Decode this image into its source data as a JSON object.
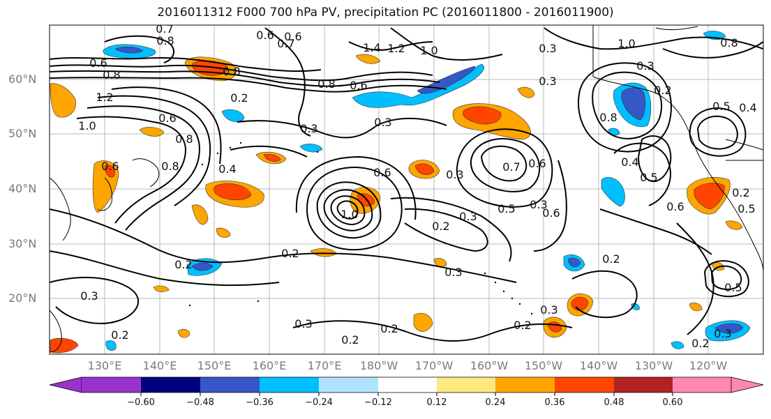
{
  "title": "2016011312 F000 700 hPa PV, precipitation PC (2016011800 - 2016011900)",
  "lat_labels": [
    "60°N",
    "50°N",
    "40°N",
    "30°N",
    "20°N"
  ],
  "lon_labels": [
    "130°E",
    "140°E",
    "150°E",
    "160°E",
    "170°E",
    "180°W",
    "170°W",
    "160°W",
    "150°W",
    "140°W",
    "130°W",
    "120°W"
  ],
  "contour_labels": [
    "0.7",
    "0.8",
    "0.6",
    "0.7",
    "1.4",
    "1.2",
    "1.0",
    "1.0",
    "0.8",
    "0.6",
    "0.8",
    "0.8",
    "0.3",
    "0.3",
    "0.6",
    "0.8",
    "0.5",
    "0.4",
    "1.2",
    "1.0",
    "0.8",
    "0.6",
    "0.2",
    "0.3",
    "0.3",
    "0.8",
    "0.4",
    "0.6",
    "0.3",
    "0.6",
    "0.7",
    "0.6",
    "0.4",
    "0.6",
    "0.8",
    "1.0",
    "0.5",
    "0.3",
    "0.2",
    "0.3",
    "0.5",
    "0.6",
    "0.2",
    "0.2",
    "0.3",
    "0.2",
    "0.2",
    "0.2",
    "0.5",
    "0.3",
    "0.3",
    "0.2",
    "0.3",
    "0.2",
    "0.2",
    "0.3",
    "0.2",
    "0.5",
    "0.3",
    "0.2",
    "0.6"
  ],
  "colorbar": {
    "ticks": [
      "−0.60",
      "−0.48",
      "−0.36",
      "−0.24",
      "−0.12",
      "0.12",
      "0.24",
      "0.36",
      "0.48",
      "0.60"
    ],
    "colors": [
      "#9932cc",
      "#000080",
      "#3557c8",
      "#00bfff",
      "#b0e2ff",
      "#ffffff",
      "#ffe880",
      "#ffa500",
      "#ff4500",
      "#b22222",
      "#ff88b0"
    ]
  }
}
